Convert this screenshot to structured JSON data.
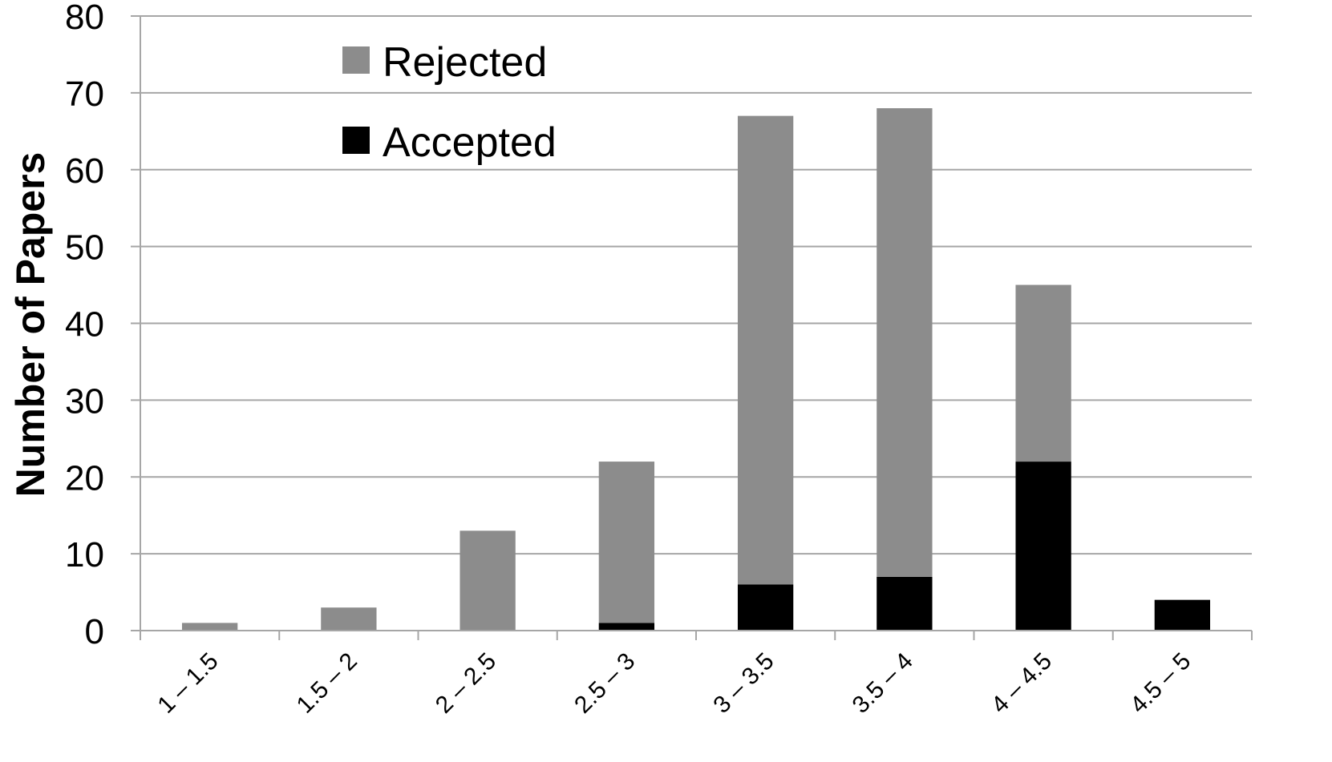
{
  "chart_data": {
    "type": "bar",
    "stacked": true,
    "title": "",
    "xlabel": "",
    "ylabel": "Number of Papers",
    "ylim": [
      0,
      80
    ],
    "yticks": [
      0,
      10,
      20,
      30,
      40,
      50,
      60,
      70,
      80
    ],
    "grid": true,
    "legend_position": "top-left",
    "categories": [
      "1 – 1.5",
      "1.5 – 2",
      "2 – 2.5",
      "2.5 – 3",
      "3 – 3.5",
      "3.5 – 4",
      "4 – 4.5",
      "4.5 – 5"
    ],
    "series": [
      {
        "name": "Accepted",
        "color": "#000000",
        "values": [
          0,
          0,
          0,
          1,
          6,
          7,
          22,
          4
        ]
      },
      {
        "name": "Rejected",
        "color": "#8c8c8c",
        "values": [
          1,
          3,
          13,
          21,
          61,
          61,
          23,
          0
        ]
      }
    ],
    "legend_order": [
      "Rejected",
      "Accepted"
    ]
  }
}
